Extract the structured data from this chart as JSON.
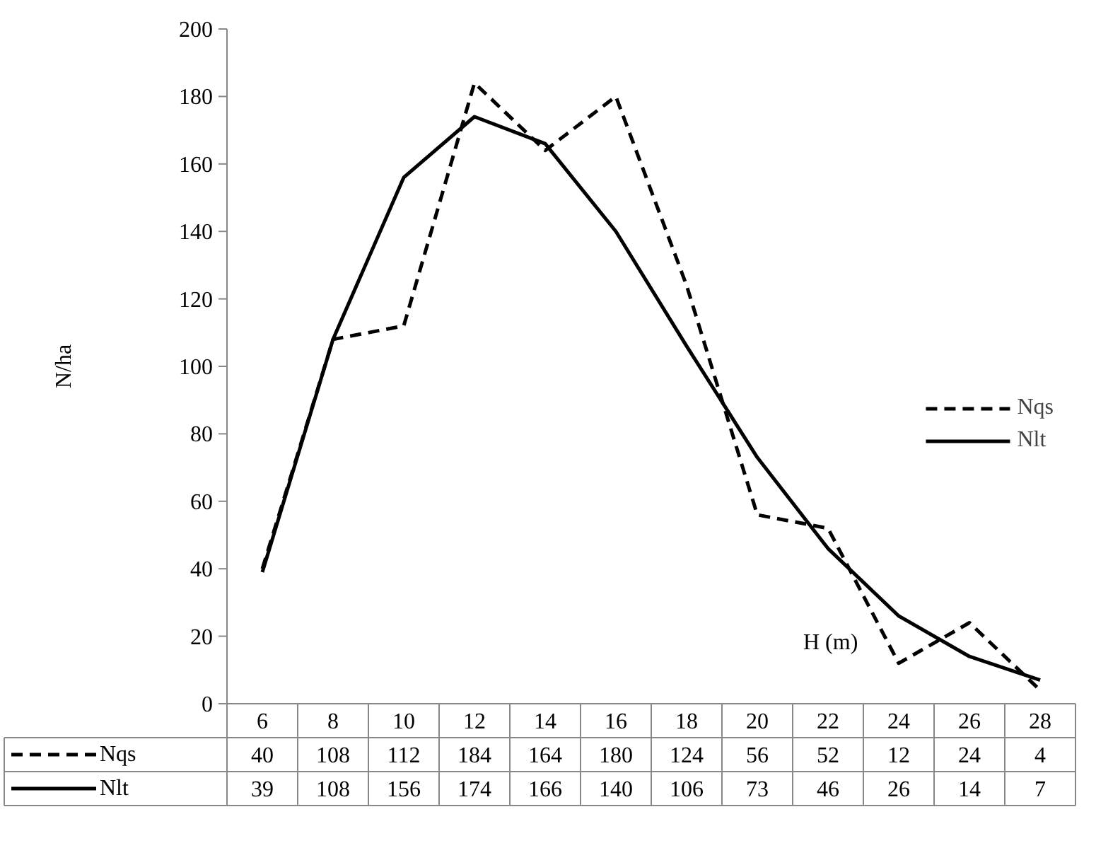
{
  "chart_data": {
    "type": "line",
    "ylabel": "N/ha",
    "xlabel": "H (m)",
    "categories": [
      "6",
      "8",
      "10",
      "12",
      "14",
      "16",
      "18",
      "20",
      "22",
      "24",
      "26",
      "28"
    ],
    "series": [
      {
        "name": "Nqs",
        "color": "#000000",
        "line_style": "dashed",
        "values": [
          40,
          108,
          112,
          184,
          164,
          180,
          124,
          56,
          52,
          12,
          24,
          4
        ]
      },
      {
        "name": "Nlt",
        "color": "#000000",
        "line_style": "solid",
        "values": [
          39,
          108,
          156,
          174,
          166,
          140,
          106,
          73,
          46,
          26,
          14,
          7
        ]
      }
    ],
    "ylim": [
      0,
      200
    ],
    "yticks": [
      0,
      20,
      40,
      60,
      80,
      100,
      120,
      140,
      160,
      180,
      200
    ],
    "grid": false,
    "legend": "right",
    "data_labels": true,
    "marker": "none"
  }
}
